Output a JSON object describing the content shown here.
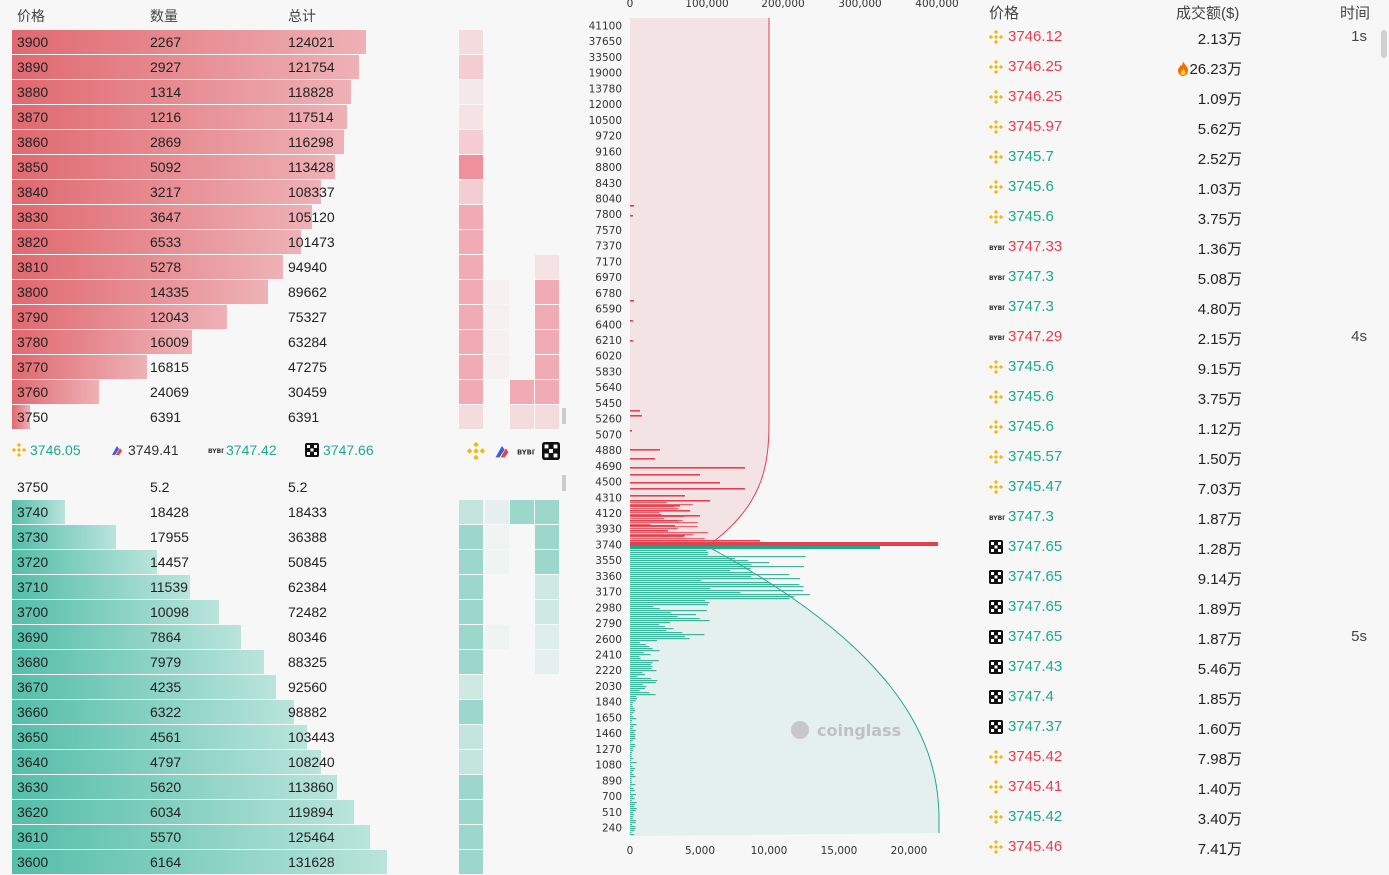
{
  "orderbook": {
    "headers": {
      "price": "价格",
      "qty": "数量",
      "total": "总计"
    },
    "asks": [
      {
        "price": "3900",
        "qty": "2267",
        "total": "124021"
      },
      {
        "price": "3890",
        "qty": "2927",
        "total": "121754"
      },
      {
        "price": "3880",
        "qty": "1314",
        "total": "118828"
      },
      {
        "price": "3870",
        "qty": "1216",
        "total": "117514"
      },
      {
        "price": "3860",
        "qty": "2869",
        "total": "116298"
      },
      {
        "price": "3850",
        "qty": "5092",
        "total": "113428"
      },
      {
        "price": "3840",
        "qty": "3217",
        "total": "108337"
      },
      {
        "price": "3830",
        "qty": "3647",
        "total": "105120"
      },
      {
        "price": "3820",
        "qty": "6533",
        "total": "101473"
      },
      {
        "price": "3810",
        "qty": "5278",
        "total": "94940"
      },
      {
        "price": "3800",
        "qty": "14335",
        "total": "89662"
      },
      {
        "price": "3790",
        "qty": "12043",
        "total": "75327"
      },
      {
        "price": "3780",
        "qty": "16009",
        "total": "63284"
      },
      {
        "price": "3770",
        "qty": "16815",
        "total": "47275"
      },
      {
        "price": "3760",
        "qty": "24069",
        "total": "30459"
      },
      {
        "price": "3750",
        "qty": "6391",
        "total": "6391"
      }
    ],
    "bids": [
      {
        "price": "3750",
        "qty": "5.2",
        "total": "5.2"
      },
      {
        "price": "3740",
        "qty": "18428",
        "total": "18433"
      },
      {
        "price": "3730",
        "qty": "17955",
        "total": "36388"
      },
      {
        "price": "3720",
        "qty": "14457",
        "total": "50845"
      },
      {
        "price": "3710",
        "qty": "11539",
        "total": "62384"
      },
      {
        "price": "3700",
        "qty": "10098",
        "total": "72482"
      },
      {
        "price": "3690",
        "qty": "7864",
        "total": "80346"
      },
      {
        "price": "3680",
        "qty": "7979",
        "total": "88325"
      },
      {
        "price": "3670",
        "qty": "4235",
        "total": "92560"
      },
      {
        "price": "3660",
        "qty": "6322",
        "total": "98882"
      },
      {
        "price": "3650",
        "qty": "4561",
        "total": "103443"
      },
      {
        "price": "3640",
        "qty": "4797",
        "total": "108240"
      },
      {
        "price": "3630",
        "qty": "5620",
        "total": "113860"
      },
      {
        "price": "3620",
        "qty": "6034",
        "total": "119894"
      },
      {
        "price": "3610",
        "qty": "5570",
        "total": "125464"
      },
      {
        "price": "3600",
        "qty": "6164",
        "total": "131628"
      }
    ],
    "mid_prices": [
      {
        "exchange": "binance",
        "value": "3746.05"
      },
      {
        "exchange": "coinbase",
        "value": "3749.41"
      },
      {
        "exchange": "bybit",
        "value": "3747.42"
      },
      {
        "exchange": "okx",
        "value": "3747.66"
      }
    ]
  },
  "chart": {
    "watermark": "coinglass",
    "top_axis": [
      "0",
      "100,000",
      "200,000",
      "300,000",
      "400,000"
    ],
    "bottom_axis": [
      "0",
      "5,000",
      "10,000",
      "15,000",
      "20,000"
    ],
    "y_labels": [
      "41100",
      "37650",
      "33500",
      "19000",
      "13780",
      "12000",
      "10500",
      "9720",
      "9160",
      "8800",
      "8430",
      "8040",
      "7800",
      "7570",
      "7370",
      "7170",
      "6970",
      "6780",
      "6590",
      "6400",
      "6210",
      "6020",
      "5830",
      "5640",
      "5450",
      "5260",
      "5070",
      "4880",
      "4690",
      "4500",
      "4310",
      "4120",
      "3930",
      "3740",
      "3550",
      "3360",
      "3170",
      "2980",
      "2790",
      "2600",
      "2410",
      "2220",
      "2030",
      "1840",
      "1650",
      "1460",
      "1270",
      "1080",
      "890",
      "700",
      "510",
      "240"
    ],
    "colors": {
      "ask": "#e5404f",
      "bid": "#1fa88e"
    }
  },
  "trades": {
    "headers": {
      "price": "价格",
      "amount": "成交额($)",
      "time": "时间"
    },
    "rows": [
      {
        "ex": "binance",
        "price": "3746.12",
        "side": "sell",
        "amount": "2.13万",
        "time": "1s"
      },
      {
        "ex": "binance",
        "price": "3746.25",
        "side": "sell",
        "amount": "26.23万",
        "time": "",
        "hot": true
      },
      {
        "ex": "binance",
        "price": "3746.25",
        "side": "sell",
        "amount": "1.09万",
        "time": ""
      },
      {
        "ex": "binance",
        "price": "3745.97",
        "side": "sell",
        "amount": "5.62万",
        "time": ""
      },
      {
        "ex": "binance",
        "price": "3745.7",
        "side": "buy",
        "amount": "2.52万",
        "time": ""
      },
      {
        "ex": "binance",
        "price": "3745.6",
        "side": "buy",
        "amount": "1.03万",
        "time": ""
      },
      {
        "ex": "binance",
        "price": "3745.6",
        "side": "buy",
        "amount": "3.75万",
        "time": ""
      },
      {
        "ex": "bybit",
        "price": "3747.33",
        "side": "sell",
        "amount": "1.36万",
        "time": ""
      },
      {
        "ex": "bybit",
        "price": "3747.3",
        "side": "buy",
        "amount": "5.08万",
        "time": ""
      },
      {
        "ex": "bybit",
        "price": "3747.3",
        "side": "buy",
        "amount": "4.80万",
        "time": ""
      },
      {
        "ex": "bybit",
        "price": "3747.29",
        "side": "sell",
        "amount": "2.15万",
        "time": "4s"
      },
      {
        "ex": "binance",
        "price": "3745.6",
        "side": "buy",
        "amount": "9.15万",
        "time": ""
      },
      {
        "ex": "binance",
        "price": "3745.6",
        "side": "buy",
        "amount": "3.75万",
        "time": ""
      },
      {
        "ex": "binance",
        "price": "3745.6",
        "side": "buy",
        "amount": "1.12万",
        "time": ""
      },
      {
        "ex": "binance",
        "price": "3745.57",
        "side": "buy",
        "amount": "1.50万",
        "time": ""
      },
      {
        "ex": "binance",
        "price": "3745.47",
        "side": "buy",
        "amount": "7.03万",
        "time": ""
      },
      {
        "ex": "bybit",
        "price": "3747.3",
        "side": "buy",
        "amount": "1.87万",
        "time": ""
      },
      {
        "ex": "okx",
        "price": "3747.65",
        "side": "buy",
        "amount": "1.28万",
        "time": ""
      },
      {
        "ex": "okx",
        "price": "3747.65",
        "side": "buy",
        "amount": "9.14万",
        "time": ""
      },
      {
        "ex": "okx",
        "price": "3747.65",
        "side": "buy",
        "amount": "1.89万",
        "time": ""
      },
      {
        "ex": "okx",
        "price": "3747.65",
        "side": "buy",
        "amount": "1.87万",
        "time": "5s"
      },
      {
        "ex": "okx",
        "price": "3747.43",
        "side": "buy",
        "amount": "5.46万",
        "time": ""
      },
      {
        "ex": "okx",
        "price": "3747.4",
        "side": "buy",
        "amount": "1.85万",
        "time": ""
      },
      {
        "ex": "okx",
        "price": "3747.37",
        "side": "buy",
        "amount": "1.60万",
        "time": ""
      },
      {
        "ex": "binance",
        "price": "3745.42",
        "side": "sell",
        "amount": "7.98万",
        "time": ""
      },
      {
        "ex": "binance",
        "price": "3745.41",
        "side": "sell",
        "amount": "1.40万",
        "time": ""
      },
      {
        "ex": "binance",
        "price": "3745.42",
        "side": "buy",
        "amount": "3.40万",
        "time": ""
      },
      {
        "ex": "binance",
        "price": "3745.46",
        "side": "sell",
        "amount": "7.41万",
        "time": ""
      }
    ]
  }
}
